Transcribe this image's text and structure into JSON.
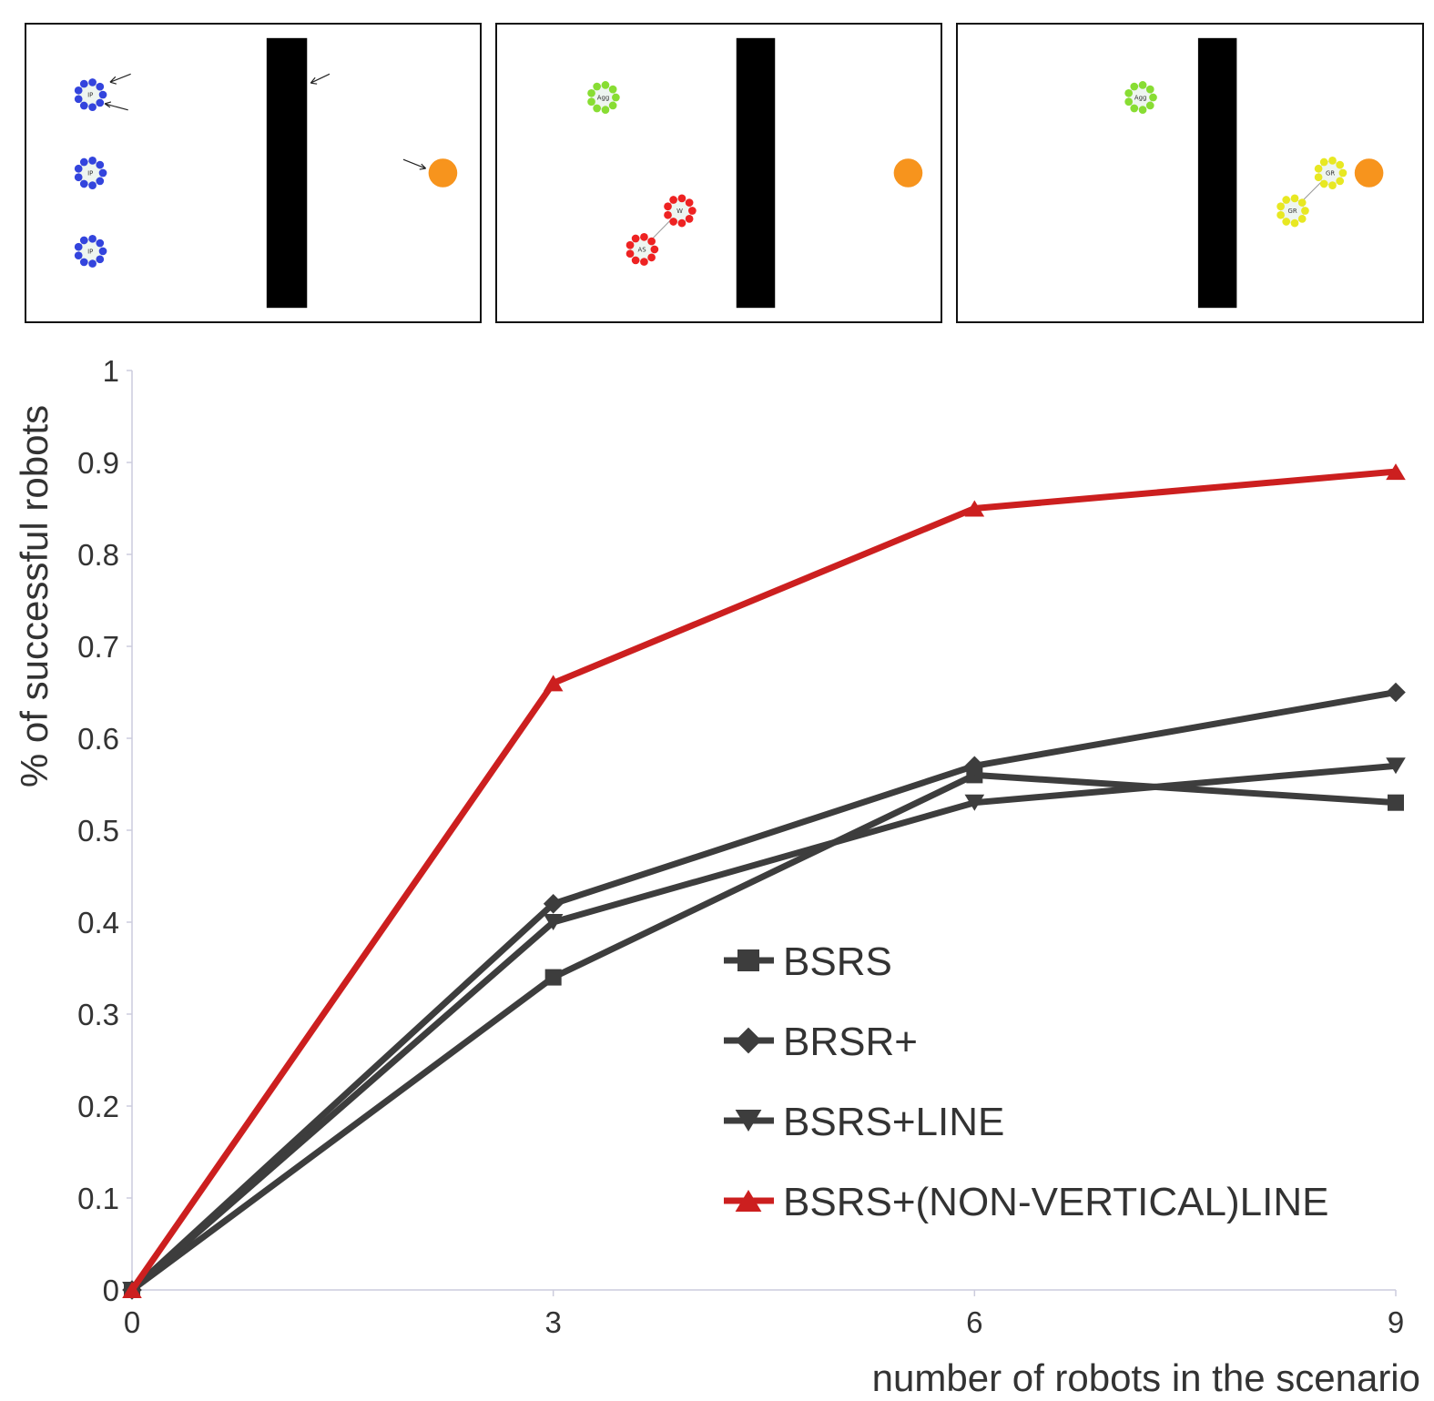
{
  "panels": [
    {
      "robots": [
        {
          "tag": "IP",
          "color": "#3344dd"
        },
        {
          "tag": "IP",
          "color": "#3344dd"
        },
        {
          "tag": "IP",
          "color": "#3344dd"
        }
      ],
      "goal_color": "#f7941d"
    },
    {
      "robots": [
        {
          "tag": "Agg",
          "color": "#88dd33"
        },
        {
          "tag": "W",
          "color": "#ee2222"
        },
        {
          "tag": "AS",
          "color": "#ee2222"
        }
      ],
      "goal_color": "#f7941d"
    },
    {
      "robots": [
        {
          "tag": "Agg",
          "color": "#88dd33"
        },
        {
          "tag": "GR",
          "color": "#e8e822"
        },
        {
          "tag": "GR",
          "color": "#e8e822"
        }
      ],
      "goal_color": "#f7941d"
    }
  ],
  "chart_data": {
    "type": "line",
    "x": [
      0,
      3,
      6,
      9
    ],
    "xlabel": "number of robots in the scenario",
    "ylabel": "% of successful robots",
    "xlim": [
      0,
      9
    ],
    "ylim": [
      0,
      1
    ],
    "xticks": [
      "0",
      "3",
      "6",
      "9"
    ],
    "yticks": [
      "0",
      "0.1",
      "0.2",
      "0.3",
      "0.4",
      "0.5",
      "0.6",
      "0.7",
      "0.8",
      "0.9",
      "1"
    ],
    "grid": false,
    "legend_position": "lower-right",
    "series": [
      {
        "name": "BSRS",
        "values": [
          0,
          0.34,
          0.56,
          0.53
        ],
        "color": "#3d3d3d",
        "marker": "square"
      },
      {
        "name": "BRSR+",
        "values": [
          0,
          0.42,
          0.57,
          0.65
        ],
        "color": "#3d3d3d",
        "marker": "diamond"
      },
      {
        "name": "BSRS+LINE",
        "values": [
          0,
          0.4,
          0.53,
          0.57
        ],
        "color": "#3d3d3d",
        "marker": "triangle-down"
      },
      {
        "name": "BSRS+(NON-VERTICAL)LINE",
        "values": [
          0,
          0.66,
          0.85,
          0.89
        ],
        "color": "#cc1f1f",
        "marker": "triangle-up"
      }
    ]
  }
}
